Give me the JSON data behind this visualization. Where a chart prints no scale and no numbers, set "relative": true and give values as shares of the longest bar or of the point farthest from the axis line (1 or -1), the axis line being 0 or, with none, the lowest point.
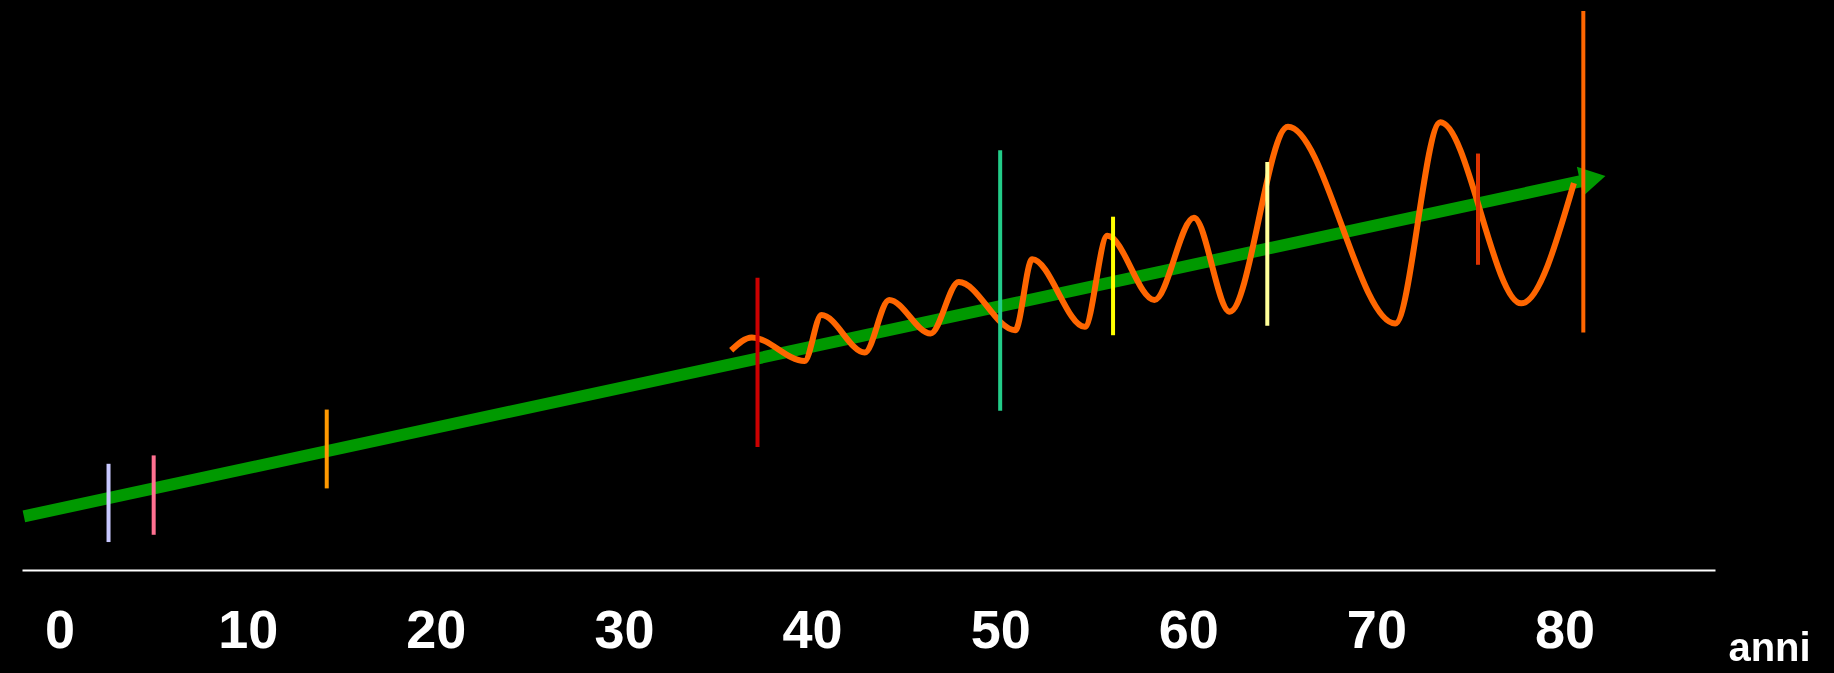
{
  "chart_data": {
    "type": "line",
    "relative": true,
    "xlabel": "anni",
    "xlim": [
      -2,
      88
    ],
    "xticks": [
      0,
      10,
      20,
      30,
      40,
      50,
      60,
      70,
      80
    ],
    "grid": false,
    "tick_labels": "x",
    "series": [
      {
        "color": "#009900",
        "x": [
          -1.9,
          81.5
        ],
        "values": [
          0.096,
          0.7
        ]
      },
      {
        "color": "#ff6600",
        "x": [
          35.7,
          36.8,
          39.6,
          40.5,
          42.8,
          44.1,
          46.3,
          47.8,
          50.8,
          51.7,
          54.5,
          55.7,
          58.2,
          60.3,
          62.2,
          65.3,
          71.0,
          73.4,
          77.7,
          80.5
        ],
        "values": [
          0.393,
          0.416,
          0.374,
          0.456,
          0.389,
          0.483,
          0.423,
          0.515,
          0.429,
          0.556,
          0.435,
          0.598,
          0.483,
          0.63,
          0.462,
          0.793,
          0.441,
          0.801,
          0.477,
          0.692
        ]
      },
      {
        "color": "#c8c8ff",
        "x": [
          2.6,
          2.6
        ],
        "values": [
          0.19,
          0.05
        ]
      },
      {
        "color": "#ff7090",
        "x": [
          5.0,
          5.0
        ],
        "values": [
          0.205,
          0.063
        ]
      },
      {
        "color": "#ff9900",
        "x": [
          14.2,
          14.2
        ],
        "values": [
          0.287,
          0.146
        ]
      },
      {
        "color": "#cc0000",
        "x": [
          37.1,
          37.1
        ],
        "values": [
          0.523,
          0.22
        ]
      },
      {
        "color": "#22cc88",
        "x": [
          50.0,
          50.0
        ],
        "values": [
          0.751,
          0.285
        ]
      },
      {
        "color": "#ffff00",
        "x": [
          56.0,
          56.0
        ],
        "values": [
          0.632,
          0.42
        ]
      },
      {
        "color": "#ffff99",
        "x": [
          64.2,
          64.2
        ],
        "values": [
          0.73,
          0.437
        ]
      },
      {
        "color": "#dd3300",
        "x": [
          75.4,
          75.4
        ],
        "values": [
          0.745,
          0.546
        ]
      },
      {
        "color": "#ff6600",
        "x": [
          81.0,
          81.0
        ],
        "values": [
          1.0,
          0.425
        ]
      }
    ]
  }
}
